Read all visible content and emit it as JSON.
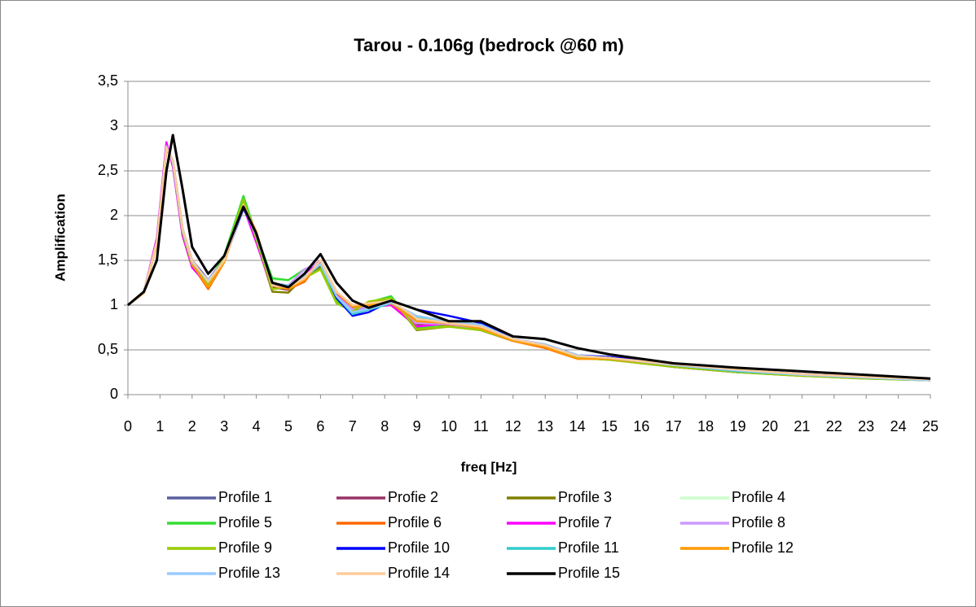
{
  "chart_data": {
    "type": "line",
    "title": "Tarou - 0.106g (bedrock @60 m)",
    "x_label": "freq [Hz]",
    "y_label": "Amplification",
    "x": [
      0,
      0.5,
      0.9,
      1.2,
      1.4,
      1.7,
      2,
      2.5,
      3,
      3.6,
      4,
      4.5,
      5,
      5.5,
      6,
      6.5,
      7,
      7.5,
      8.2,
      9,
      10,
      11,
      12,
      13,
      14,
      15,
      17,
      19,
      21,
      23,
      25
    ],
    "xlim": [
      0,
      25
    ],
    "ylim": [
      0,
      3.5
    ],
    "xticks": [
      0,
      1,
      2,
      3,
      4,
      5,
      6,
      7,
      8,
      9,
      10,
      11,
      12,
      13,
      14,
      15,
      16,
      17,
      18,
      19,
      20,
      21,
      22,
      23,
      24,
      25
    ],
    "yticks": [
      0,
      {
        "value": 0.5,
        "label": "0,5"
      },
      1,
      {
        "value": 1.5,
        "label": "1,5"
      },
      2,
      {
        "value": 2.5,
        "label": "2,5"
      },
      3,
      {
        "value": 3.5,
        "label": "3,5"
      }
    ],
    "grid": true,
    "series": [
      {
        "name": "Profile 1",
        "color": "#5a5f9e",
        "values": [
          1,
          1.15,
          1.7,
          2.75,
          2.6,
          1.85,
          1.5,
          1.28,
          1.52,
          2.12,
          1.78,
          1.22,
          1.2,
          1.3,
          1.47,
          1.12,
          0.96,
          0.98,
          1.05,
          0.82,
          0.8,
          0.74,
          0.61,
          0.56,
          0.44,
          0.41,
          0.33,
          0.26,
          0.22,
          0.19,
          0.16
        ]
      },
      {
        "name": "Profie 2",
        "color": "#993366",
        "values": [
          1,
          1.15,
          1.72,
          2.8,
          2.55,
          1.8,
          1.45,
          1.22,
          1.52,
          2.17,
          1.78,
          1.2,
          1.17,
          1.28,
          1.45,
          1.1,
          0.95,
          0.97,
          1.04,
          0.78,
          0.77,
          0.72,
          0.6,
          0.55,
          0.42,
          0.4,
          0.32,
          0.25,
          0.22,
          0.19,
          0.16
        ]
      },
      {
        "name": "Profile 3",
        "color": "#808000",
        "values": [
          1,
          1.15,
          1.7,
          2.78,
          2.58,
          1.78,
          1.44,
          1.24,
          1.55,
          2.2,
          1.72,
          1.15,
          1.14,
          1.32,
          1.42,
          1.05,
          0.92,
          1.02,
          1.08,
          0.72,
          0.76,
          0.72,
          0.6,
          0.53,
          0.41,
          0.39,
          0.31,
          0.25,
          0.21,
          0.18,
          0.16
        ]
      },
      {
        "name": "Profile 4",
        "color": "#ccffcc",
        "values": [
          1,
          1.16,
          1.72,
          2.78,
          2.57,
          1.8,
          1.46,
          1.25,
          1.54,
          2.18,
          1.76,
          1.28,
          1.28,
          1.38,
          1.48,
          1.08,
          0.95,
          1.0,
          1.06,
          0.76,
          0.78,
          0.73,
          0.6,
          0.54,
          0.42,
          0.4,
          0.32,
          0.25,
          0.22,
          0.19,
          0.16
        ]
      },
      {
        "name": "Profile 5",
        "color": "#33dd33",
        "values": [
          1,
          1.15,
          1.72,
          2.78,
          2.6,
          1.8,
          1.45,
          1.24,
          1.55,
          2.22,
          1.78,
          1.3,
          1.28,
          1.4,
          1.45,
          1.05,
          0.94,
          1.03,
          1.1,
          0.74,
          0.77,
          0.73,
          0.6,
          0.54,
          0.41,
          0.4,
          0.32,
          0.25,
          0.22,
          0.19,
          0.16
        ]
      },
      {
        "name": "Profile 6",
        "color": "#ff6600",
        "values": [
          1,
          1.14,
          1.68,
          2.75,
          2.62,
          1.85,
          1.45,
          1.18,
          1.48,
          2.12,
          1.82,
          1.22,
          1.18,
          1.26,
          1.5,
          1.15,
          0.98,
          0.99,
          1.0,
          0.8,
          0.78,
          0.72,
          0.6,
          0.52,
          0.4,
          0.4,
          0.32,
          0.26,
          0.22,
          0.19,
          0.17
        ]
      },
      {
        "name": "Profile 7",
        "color": "#ff00ff",
        "values": [
          1,
          1.15,
          1.75,
          2.82,
          2.55,
          1.78,
          1.42,
          1.22,
          1.5,
          2.1,
          1.7,
          1.18,
          1.2,
          1.35,
          1.5,
          1.12,
          0.95,
          0.98,
          1.0,
          0.76,
          0.8,
          0.72,
          0.6,
          0.55,
          0.42,
          0.4,
          0.31,
          0.25,
          0.22,
          0.19,
          0.16
        ]
      },
      {
        "name": "Profile 8",
        "color": "#cc99ff",
        "values": [
          1,
          1.15,
          1.72,
          2.78,
          2.58,
          1.82,
          1.46,
          1.24,
          1.52,
          2.14,
          1.75,
          1.22,
          1.22,
          1.4,
          1.48,
          1.1,
          0.95,
          0.98,
          1.03,
          0.8,
          0.79,
          0.73,
          0.61,
          0.55,
          0.43,
          0.4,
          0.32,
          0.26,
          0.22,
          0.19,
          0.16
        ]
      },
      {
        "name": "Profile 9",
        "color": "#99cc00",
        "values": [
          1,
          1.15,
          1.7,
          2.76,
          2.6,
          1.82,
          1.45,
          1.23,
          1.53,
          2.18,
          1.74,
          1.18,
          1.2,
          1.3,
          1.4,
          1.02,
          0.93,
          1.04,
          1.08,
          0.73,
          0.76,
          0.72,
          0.6,
          0.54,
          0.41,
          0.39,
          0.31,
          0.25,
          0.21,
          0.18,
          0.16
        ]
      },
      {
        "name": "Profile 10",
        "color": "#0000ff",
        "values": [
          1,
          1.15,
          1.7,
          2.75,
          2.62,
          1.86,
          1.5,
          1.28,
          1.5,
          2.08,
          1.8,
          1.24,
          1.22,
          1.3,
          1.48,
          1.08,
          0.88,
          0.92,
          1.05,
          0.95,
          0.88,
          0.8,
          0.62,
          0.56,
          0.44,
          0.42,
          0.35,
          0.28,
          0.23,
          0.2,
          0.17
        ]
      },
      {
        "name": "Profile 11",
        "color": "#33cccc",
        "values": [
          1,
          1.15,
          1.7,
          2.76,
          2.6,
          1.84,
          1.48,
          1.26,
          1.5,
          2.1,
          1.78,
          1.22,
          1.2,
          1.3,
          1.46,
          1.1,
          0.9,
          0.95,
          1.02,
          0.86,
          0.82,
          0.78,
          0.62,
          0.55,
          0.43,
          0.41,
          0.33,
          0.26,
          0.22,
          0.19,
          0.16
        ]
      },
      {
        "name": "Profile 12",
        "color": "#ff9900",
        "values": [
          1,
          1.14,
          1.68,
          2.74,
          2.62,
          1.85,
          1.46,
          1.2,
          1.48,
          2.12,
          1.82,
          1.22,
          1.18,
          1.28,
          1.5,
          1.14,
          0.98,
          1.0,
          1.02,
          0.82,
          0.8,
          0.74,
          0.6,
          0.53,
          0.4,
          0.4,
          0.33,
          0.27,
          0.22,
          0.19,
          0.17
        ]
      },
      {
        "name": "Profile 13",
        "color": "#99ccff",
        "values": [
          1,
          1.15,
          1.7,
          2.76,
          2.6,
          1.84,
          1.48,
          1.28,
          1.5,
          2.1,
          1.78,
          1.24,
          1.22,
          1.32,
          1.46,
          1.1,
          0.92,
          0.96,
          1.03,
          0.88,
          0.82,
          0.78,
          0.62,
          0.56,
          0.44,
          0.41,
          0.33,
          0.27,
          0.22,
          0.19,
          0.16
        ]
      },
      {
        "name": "Profile 14",
        "color": "#ffcc99",
        "values": [
          1,
          1.15,
          1.7,
          2.76,
          2.62,
          1.86,
          1.5,
          1.26,
          1.5,
          2.12,
          1.8,
          1.22,
          1.2,
          1.3,
          1.5,
          1.15,
          1.0,
          1.02,
          1.05,
          0.85,
          0.8,
          0.76,
          0.62,
          0.55,
          0.43,
          0.41,
          0.34,
          0.28,
          0.23,
          0.2,
          0.17
        ]
      },
      {
        "name": "Profile 15",
        "color": "#000000",
        "values": [
          1,
          1.15,
          1.5,
          2.5,
          2.9,
          2.3,
          1.65,
          1.35,
          1.55,
          2.1,
          1.8,
          1.25,
          1.2,
          1.35,
          1.57,
          1.25,
          1.05,
          0.97,
          1.05,
          0.95,
          0.82,
          0.82,
          0.65,
          0.62,
          0.52,
          0.45,
          0.35,
          0.3,
          0.26,
          0.22,
          0.18
        ]
      }
    ]
  }
}
